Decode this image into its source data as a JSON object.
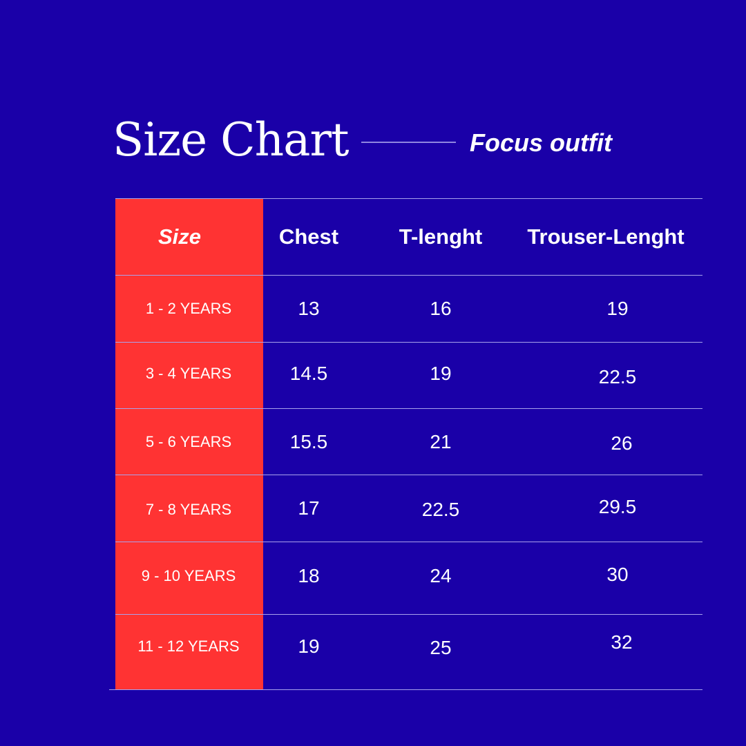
{
  "header": {
    "title": "Size Chart",
    "subtitle": "Focus outfit"
  },
  "colors": {
    "background": "#1a00a8",
    "size_column": "#ff3333",
    "text": "#ffffff"
  },
  "table": {
    "columns": [
      "Size",
      "Chest",
      "T-lenght",
      "Trouser-Lenght"
    ],
    "rows": [
      [
        "1 - 2 YEARS",
        "13",
        "16",
        "19"
      ],
      [
        "3 - 4 YEARS",
        "14.5",
        "19",
        "22.5"
      ],
      [
        "5 - 6 YEARS",
        "15.5",
        "21",
        "26"
      ],
      [
        "7 - 8 YEARS",
        "17",
        "22.5",
        "29.5"
      ],
      [
        "9 - 10 YEARS",
        "18",
        "24",
        "30"
      ],
      [
        "11 - 12 YEARS",
        "19",
        "25",
        "32"
      ]
    ]
  }
}
